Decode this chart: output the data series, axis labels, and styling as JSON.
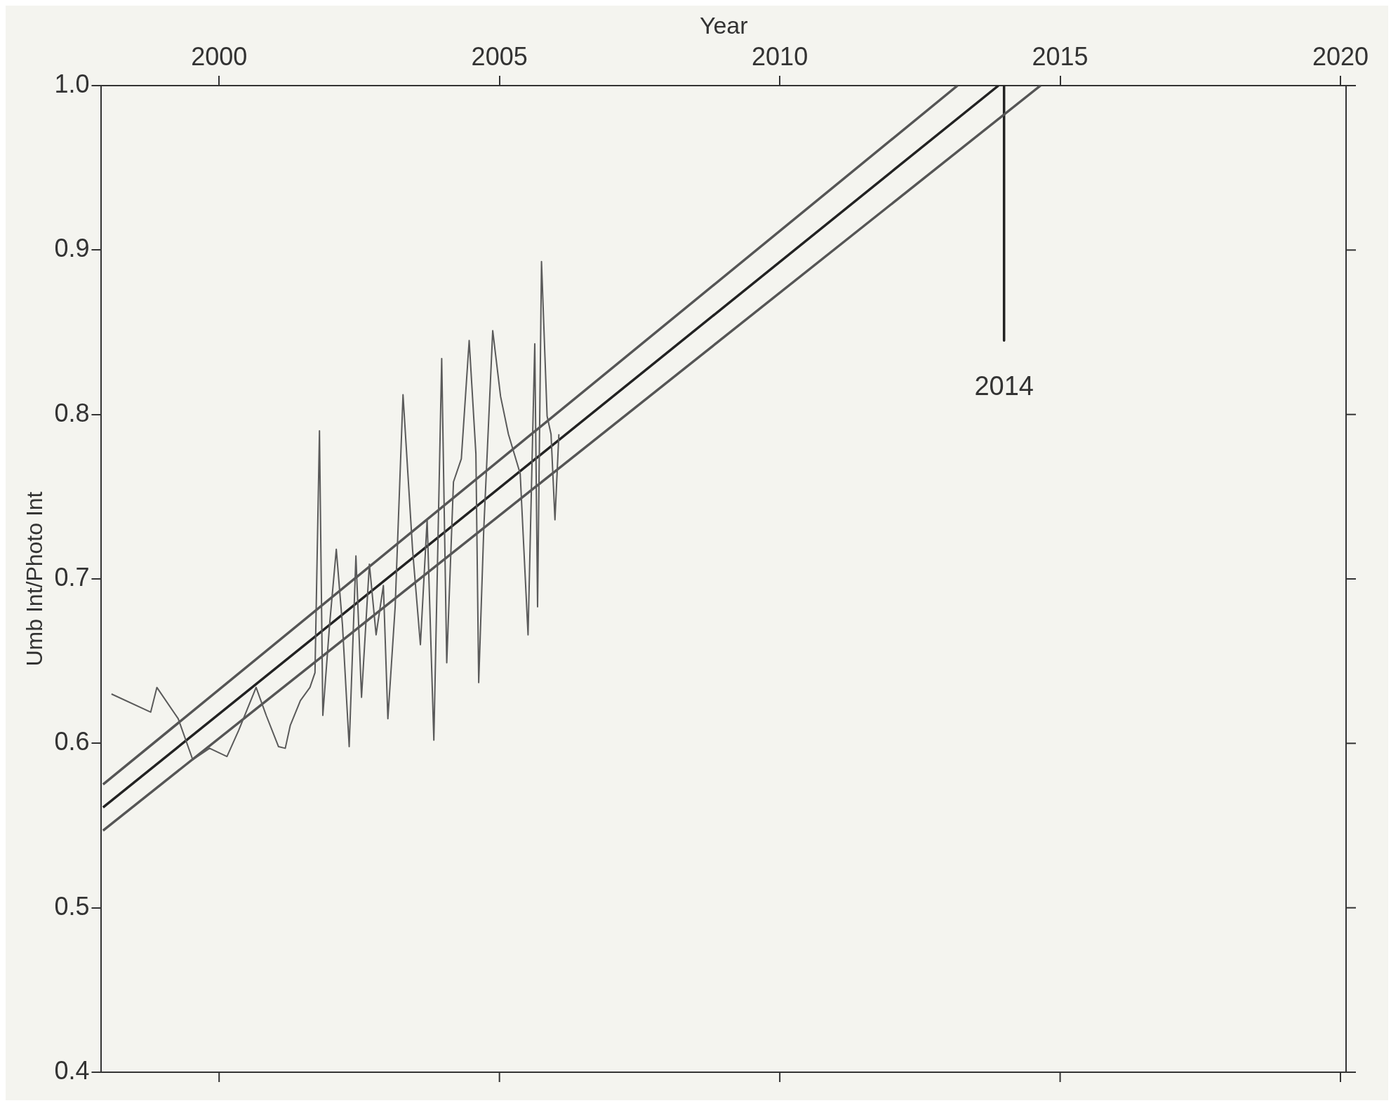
{
  "chart_data": {
    "type": "line",
    "xlabel": "Year",
    "ylabel": "Umb Int/Photo Int",
    "xlim": [
      1997.9,
      2020.1
    ],
    "xticks": [
      2000,
      2005,
      2010,
      2015,
      2020
    ],
    "ylim": [
      0.4,
      1.0
    ],
    "yticks": [
      {
        "value": 0.4,
        "label": "0.4"
      },
      {
        "value": 0.5,
        "label": "0.5"
      },
      {
        "value": 0.6,
        "label": "0.6"
      },
      {
        "value": 0.7,
        "label": "0.7"
      },
      {
        "value": 0.8,
        "label": "0.8"
      },
      {
        "value": 0.9,
        "label": "0.9"
      },
      {
        "value": 1.0,
        "label": "1.0"
      }
    ],
    "grid": false,
    "legend": false,
    "marker": "none",
    "line_style": "solid",
    "series": [
      {
        "color": "#5a5a5a",
        "x": [
          1998.08,
          1998.78,
          1998.89,
          1999.27,
          1999.53,
          1999.83,
          2000.14,
          2000.35,
          2000.66,
          2000.84,
          2001.06,
          2001.18,
          2001.27,
          2001.45,
          2001.62,
          2001.71,
          2001.79,
          2001.85,
          2001.97,
          2002.09,
          2002.2,
          2002.32,
          2002.44,
          2002.54,
          2002.68,
          2002.8,
          2002.93,
          2003.01,
          2003.14,
          2003.28,
          2003.45,
          2003.59,
          2003.71,
          2003.83,
          2003.97,
          2004.06,
          2004.18,
          2004.32,
          2004.46,
          2004.58,
          2004.63,
          2004.72,
          2004.88,
          2005.02,
          2005.16,
          2005.37,
          2005.51,
          2005.63,
          2005.68,
          2005.75,
          2005.85,
          2005.92,
          2005.99,
          2006.06
        ],
        "values": [
          0.63,
          0.619,
          0.634,
          0.615,
          0.59,
          0.597,
          0.592,
          0.608,
          0.634,
          0.617,
          0.598,
          0.597,
          0.611,
          0.626,
          0.634,
          0.643,
          0.79,
          0.617,
          0.672,
          0.718,
          0.672,
          0.598,
          0.714,
          0.628,
          0.709,
          0.666,
          0.696,
          0.615,
          0.683,
          0.812,
          0.718,
          0.66,
          0.736,
          0.602,
          0.834,
          0.649,
          0.759,
          0.773,
          0.845,
          0.776,
          0.637,
          0.73,
          0.851,
          0.811,
          0.788,
          0.764,
          0.666,
          0.843,
          0.683,
          0.893,
          0.799,
          0.788,
          0.736,
          0.788
        ]
      },
      {
        "color": "#222222",
        "x": [
          1997.93,
          2013.9
        ],
        "values": [
          0.561,
          1.0
        ]
      },
      {
        "color": "#555555",
        "x": [
          1997.93,
          2013.17
        ],
        "values": [
          0.575,
          1.0
        ]
      },
      {
        "color": "#555555",
        "x": [
          1997.93,
          2014.65
        ],
        "values": [
          0.547,
          1.0
        ]
      },
      {
        "color": "#222222",
        "x": [
          2014,
          2014
        ],
        "values": [
          1.0,
          0.845
        ]
      }
    ],
    "annotations": [
      {
        "text": "2014",
        "x": 2014,
        "y": 0.845
      }
    ]
  }
}
